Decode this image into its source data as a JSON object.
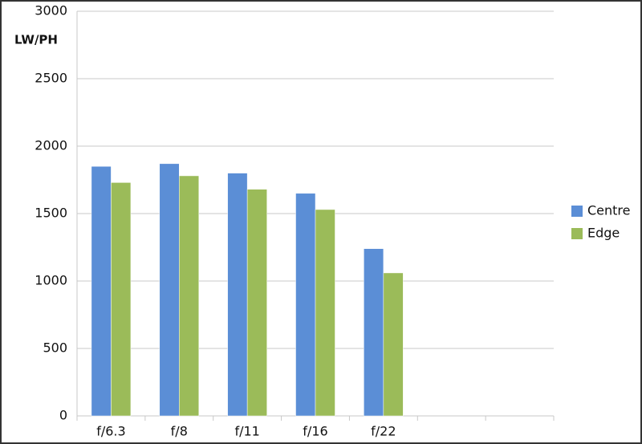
{
  "chart_data": {
    "type": "bar",
    "y_label": "LW/PH",
    "categories": [
      "f/6.3",
      "f/8",
      "f/11",
      "f/16",
      "f/22",
      null,
      null
    ],
    "series": [
      {
        "name": "Centre",
        "color": "#5b8ed6",
        "values": [
          1850,
          1870,
          1800,
          1650,
          1240,
          null,
          null
        ]
      },
      {
        "name": "Edge",
        "color": "#9bbb59",
        "values": [
          1730,
          1780,
          1680,
          1530,
          1060,
          null,
          null
        ]
      }
    ],
    "ylim": [
      0,
      3000
    ],
    "yticks": [
      0,
      500,
      1000,
      1500,
      2000,
      2500,
      3000
    ],
    "grid": true,
    "legend": "right"
  }
}
